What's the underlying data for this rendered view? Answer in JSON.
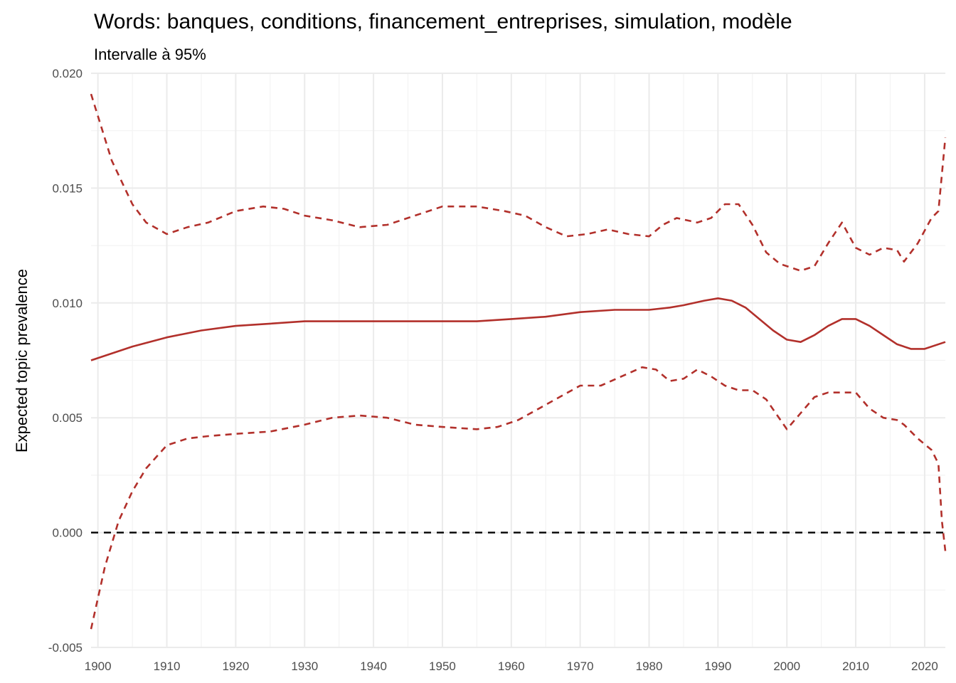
{
  "chart_data": {
    "type": "line",
    "title": "Words: banques, conditions, financement_entreprises, simulation, modèle",
    "subtitle": "Intervalle à 95%",
    "xlabel": "",
    "ylabel": "Expected topic prevalence",
    "xlim": [
      1899,
      2023
    ],
    "ylim": [
      -0.005,
      0.02
    ],
    "x_ticks": [
      1900,
      1910,
      1920,
      1930,
      1940,
      1950,
      1960,
      1970,
      1980,
      1990,
      2000,
      2010,
      2020
    ],
    "y_ticks": [
      -0.005,
      0.0,
      0.005,
      0.01,
      0.015,
      0.02
    ],
    "y_tick_labels": [
      "-0.005",
      "0.000",
      "0.005",
      "0.010",
      "0.015",
      "0.020"
    ],
    "grid": true,
    "reference_line": {
      "y": 0.0,
      "style": "dashed",
      "color": "#000000"
    },
    "colors": {
      "series": "#b2302b"
    },
    "series": [
      {
        "role": "estimate",
        "style": "solid",
        "x": [
          1899,
          1905,
          1910,
          1915,
          1920,
          1925,
          1930,
          1935,
          1940,
          1945,
          1950,
          1955,
          1960,
          1965,
          1970,
          1975,
          1980,
          1983,
          1985,
          1988,
          1990,
          1992,
          1994,
          1996,
          1998,
          2000,
          2002,
          2004,
          2006,
          2008,
          2010,
          2012,
          2014,
          2016,
          2018,
          2020,
          2023
        ],
        "y": [
          0.0075,
          0.0081,
          0.0085,
          0.0088,
          0.009,
          0.0091,
          0.0092,
          0.0092,
          0.0092,
          0.0092,
          0.0092,
          0.0092,
          0.0093,
          0.0094,
          0.0096,
          0.0097,
          0.0097,
          0.0098,
          0.0099,
          0.0101,
          0.0102,
          0.0101,
          0.0098,
          0.0093,
          0.0088,
          0.0084,
          0.0083,
          0.0086,
          0.009,
          0.0093,
          0.0093,
          0.009,
          0.0086,
          0.0082,
          0.008,
          0.008,
          0.0083
        ]
      },
      {
        "role": "upper_95",
        "style": "dashed",
        "x": [
          1899,
          1902,
          1905,
          1907,
          1910,
          1913,
          1916,
          1920,
          1924,
          1927,
          1930,
          1934,
          1938,
          1942,
          1946,
          1950,
          1955,
          1959,
          1962,
          1965,
          1968,
          1971,
          1974,
          1977,
          1980,
          1982,
          1984,
          1987,
          1989,
          1991,
          1993,
          1995,
          1997,
          1999,
          2002,
          2004,
          2006,
          2008,
          2010,
          2012,
          2014,
          2016,
          2017,
          2019,
          2021,
          2022,
          2023
        ],
        "y": [
          0.0191,
          0.0162,
          0.0143,
          0.0135,
          0.013,
          0.0133,
          0.0135,
          0.014,
          0.0142,
          0.0141,
          0.0138,
          0.0136,
          0.0133,
          0.0134,
          0.0138,
          0.0142,
          0.0142,
          0.014,
          0.0138,
          0.0133,
          0.0129,
          0.013,
          0.0132,
          0.013,
          0.0129,
          0.0134,
          0.0137,
          0.0135,
          0.0137,
          0.0143,
          0.0143,
          0.0134,
          0.0122,
          0.0117,
          0.0114,
          0.0116,
          0.0126,
          0.0135,
          0.0124,
          0.0121,
          0.0124,
          0.0123,
          0.0118,
          0.0126,
          0.0137,
          0.014,
          0.0172
        ]
      },
      {
        "role": "lower_95",
        "style": "dashed",
        "x": [
          1899,
          1901,
          1903,
          1905,
          1907,
          1910,
          1913,
          1916,
          1920,
          1925,
          1930,
          1934,
          1938,
          1942,
          1946,
          1950,
          1955,
          1958,
          1961,
          1964,
          1967,
          1970,
          1973,
          1976,
          1979,
          1981,
          1983,
          1985,
          1987,
          1989,
          1991,
          1993,
          1995,
          1997,
          2000,
          2002,
          2004,
          2006,
          2008,
          2010,
          2012,
          2014,
          2016,
          2017,
          2019,
          2021,
          2022,
          2022.5,
          2023
        ],
        "y": [
          -0.0042,
          -0.0015,
          0.0005,
          0.0018,
          0.0028,
          0.0038,
          0.0041,
          0.0042,
          0.0043,
          0.0044,
          0.0047,
          0.005,
          0.0051,
          0.005,
          0.0047,
          0.0046,
          0.0045,
          0.0046,
          0.0049,
          0.0054,
          0.0059,
          0.0064,
          0.0064,
          0.0068,
          0.0072,
          0.0071,
          0.0066,
          0.0067,
          0.0071,
          0.0068,
          0.0064,
          0.0062,
          0.0062,
          0.0058,
          0.0045,
          0.0052,
          0.0059,
          0.0061,
          0.0061,
          0.0061,
          0.0054,
          0.005,
          0.0049,
          0.0047,
          0.0041,
          0.0036,
          0.003,
          0.0005,
          -0.0008
        ]
      }
    ]
  }
}
